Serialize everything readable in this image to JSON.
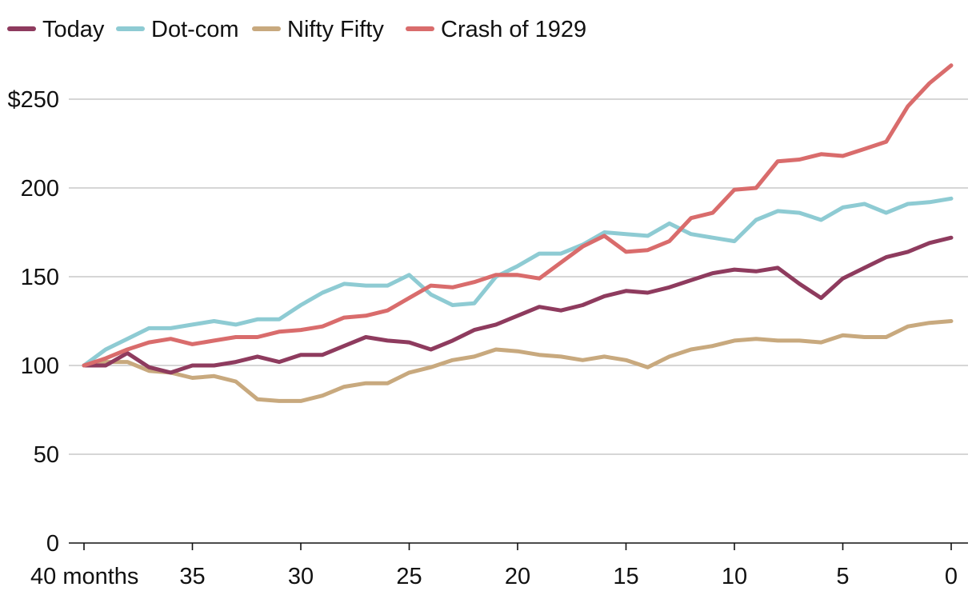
{
  "chart_data": {
    "type": "line",
    "title": "",
    "xlabel": "",
    "ylabel": "",
    "x": [
      40,
      39,
      38,
      37,
      36,
      35,
      34,
      33,
      32,
      31,
      30,
      29,
      28,
      27,
      26,
      25,
      24,
      23,
      22,
      21,
      20,
      19,
      18,
      17,
      16,
      15,
      14,
      13,
      12,
      11,
      10,
      9,
      8,
      7,
      6,
      5,
      4,
      3,
      2,
      1,
      0
    ],
    "xlim": [
      40,
      0
    ],
    "ylim": [
      0,
      275
    ],
    "x_ticks": [
      {
        "value": 40,
        "label": "40 months"
      },
      {
        "value": 35,
        "label": "35"
      },
      {
        "value": 30,
        "label": "30"
      },
      {
        "value": 25,
        "label": "25"
      },
      {
        "value": 20,
        "label": "20"
      },
      {
        "value": 15,
        "label": "15"
      },
      {
        "value": 10,
        "label": "10"
      },
      {
        "value": 5,
        "label": "5"
      },
      {
        "value": 0,
        "label": "0"
      }
    ],
    "y_ticks": [
      {
        "value": 0,
        "label": "0"
      },
      {
        "value": 50,
        "label": "50"
      },
      {
        "value": 100,
        "label": "100"
      },
      {
        "value": 150,
        "label": "150"
      },
      {
        "value": 200,
        "label": "200"
      },
      {
        "value": 250,
        "label": "$250"
      }
    ],
    "legend_position": "top-left",
    "series": [
      {
        "name": "Today",
        "color": "#8e3b5e",
        "values": [
          100,
          100,
          107,
          99,
          96,
          100,
          100,
          102,
          105,
          102,
          106,
          106,
          111,
          116,
          114,
          113,
          109,
          114,
          120,
          123,
          128,
          133,
          131,
          134,
          139,
          142,
          141,
          144,
          148,
          152,
          154,
          153,
          155,
          146,
          138,
          149,
          155,
          161,
          164,
          169,
          172
        ]
      },
      {
        "name": "Dot-com",
        "color": "#8ecbd3",
        "values": [
          100,
          109,
          115,
          121,
          121,
          123,
          125,
          123,
          126,
          126,
          134,
          141,
          146,
          145,
          145,
          151,
          140,
          134,
          135,
          150,
          156,
          163,
          163,
          168,
          175,
          174,
          173,
          180,
          174,
          172,
          170,
          182,
          187,
          186,
          182,
          189,
          191,
          186,
          191,
          192,
          194
        ]
      },
      {
        "name": "Nifty Fifty",
        "color": "#c8a97e",
        "values": [
          100,
          102,
          102,
          97,
          96,
          93,
          94,
          91,
          81,
          80,
          80,
          83,
          88,
          90,
          90,
          96,
          99,
          103,
          105,
          109,
          108,
          106,
          105,
          103,
          105,
          103,
          99,
          105,
          109,
          111,
          114,
          115,
          114,
          114,
          113,
          117,
          116,
          116,
          122,
          124,
          125
        ]
      },
      {
        "name": "Crash of 1929",
        "color": "#d96c6c",
        "values": [
          100,
          104,
          109,
          113,
          115,
          112,
          114,
          116,
          116,
          119,
          120,
          122,
          127,
          128,
          131,
          138,
          145,
          144,
          147,
          151,
          151,
          149,
          158,
          167,
          173,
          164,
          165,
          170,
          183,
          186,
          199,
          200,
          215,
          216,
          219,
          218,
          222,
          226,
          246,
          259,
          269
        ]
      }
    ]
  }
}
